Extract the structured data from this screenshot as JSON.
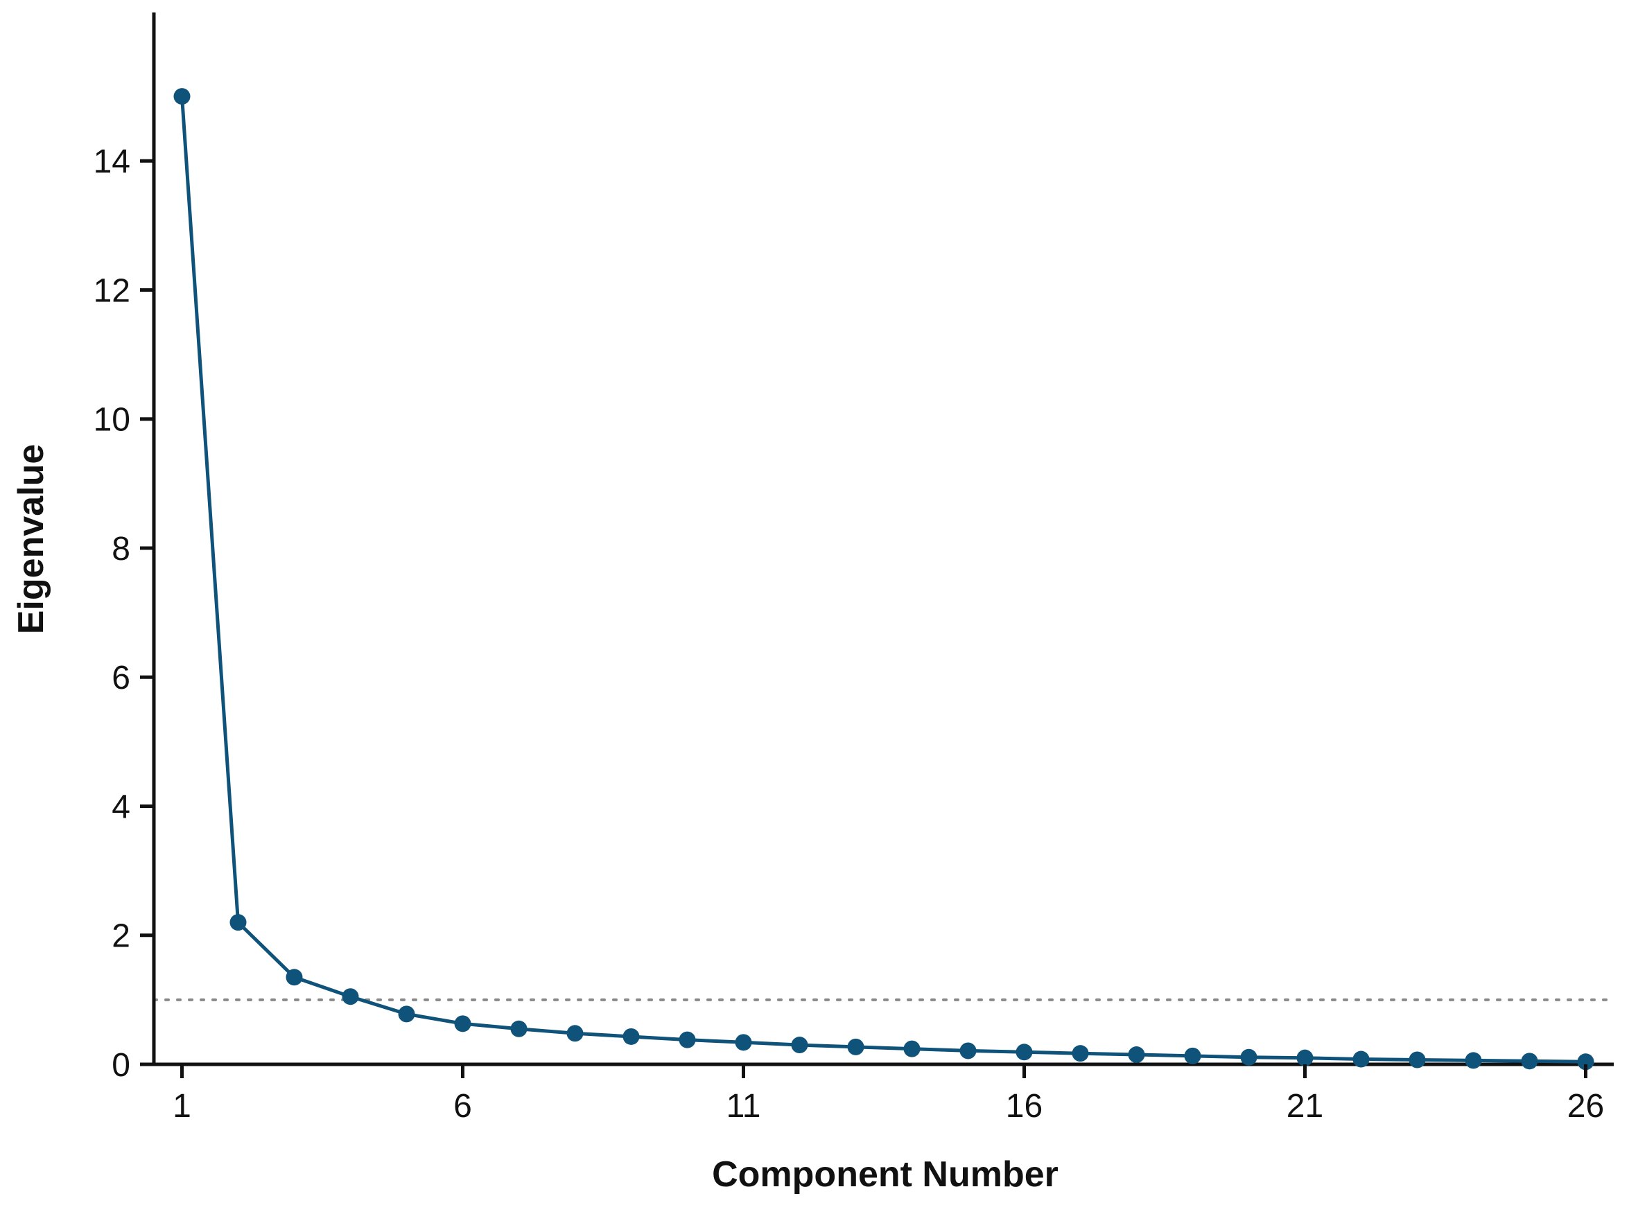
{
  "chart_data": {
    "type": "line",
    "title": "",
    "xlabel": "Component Number",
    "ylabel": "Eigenvalue",
    "x": [
      1,
      2,
      3,
      4,
      5,
      6,
      7,
      8,
      9,
      10,
      11,
      12,
      13,
      14,
      15,
      16,
      17,
      18,
      19,
      20,
      21,
      22,
      23,
      24,
      25,
      26
    ],
    "series": [
      {
        "values": [
          15.0,
          2.2,
          1.35,
          1.05,
          0.78,
          0.63,
          0.55,
          0.48,
          0.43,
          0.38,
          0.34,
          0.3,
          0.27,
          0.24,
          0.21,
          0.19,
          0.17,
          0.15,
          0.13,
          0.11,
          0.1,
          0.08,
          0.07,
          0.06,
          0.05,
          0.04
        ]
      }
    ],
    "xticks": [
      1,
      6,
      11,
      16,
      21,
      26
    ],
    "yticks": [
      0,
      2,
      4,
      6,
      8,
      10,
      12,
      14
    ],
    "xlim": [
      0.5,
      26.5
    ],
    "ylim": [
      0,
      16.3
    ],
    "reference_line": {
      "y": 1,
      "style": "dotted"
    },
    "grid": false,
    "legend": "none",
    "colors": {
      "series": "#0f527a",
      "axis": "#111111",
      "reference": "#888888"
    }
  }
}
